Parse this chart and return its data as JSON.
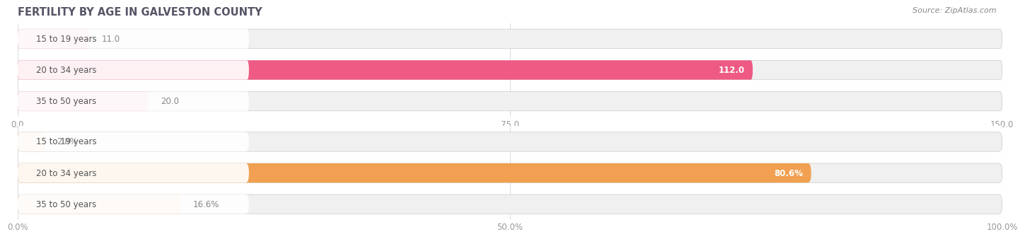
{
  "title": "FERTILITY BY AGE IN GALVESTON COUNTY",
  "source": "Source: ZipAtlas.com",
  "top_section": {
    "categories": [
      "15 to 19 years",
      "20 to 34 years",
      "35 to 50 years"
    ],
    "values": [
      11.0,
      112.0,
      20.0
    ],
    "xmax": 150.0,
    "xticks": [
      0.0,
      75.0,
      150.0
    ],
    "xtick_labels": [
      "0.0",
      "75.0",
      "150.0"
    ],
    "bar_colors": [
      "#f4a0b8",
      "#ee5a84",
      "#f4a0b8"
    ],
    "bar_bg_color": "#f0f0f0",
    "label_bg_color": "#ffffff"
  },
  "bottom_section": {
    "categories": [
      "15 to 19 years",
      "20 to 34 years",
      "35 to 50 years"
    ],
    "values": [
      2.8,
      80.6,
      16.6
    ],
    "xmax": 100.0,
    "xticks": [
      0.0,
      50.0,
      100.0
    ],
    "xtick_labels": [
      "0.0%",
      "50.0%",
      "100.0%"
    ],
    "bar_colors": [
      "#f5cda0",
      "#f0a050",
      "#f5cda0"
    ],
    "bar_bg_color": "#f0f0f0",
    "label_bg_color": "#ffffff"
  },
  "background_color": "#ffffff",
  "title_fontsize": 10.5,
  "source_fontsize": 8,
  "value_fontsize": 8.5,
  "category_fontsize": 8.5,
  "tick_fontsize": 8.5,
  "title_color": "#555566",
  "source_color": "#888888",
  "category_color": "#555555",
  "value_color_inside": "#ffffff",
  "value_color_outside": "#888888",
  "tick_color": "#999999",
  "grid_color": "#dddddd"
}
